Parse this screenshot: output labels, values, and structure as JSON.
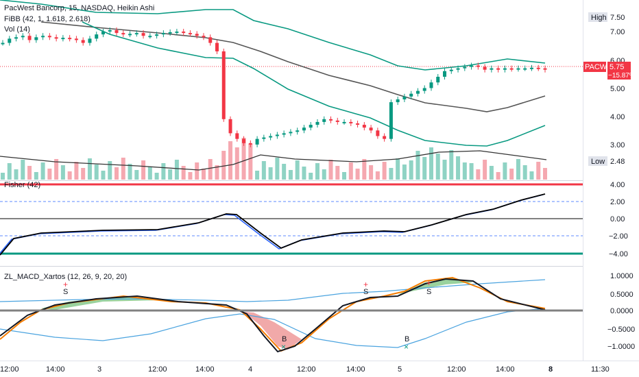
{
  "symbol_title": "PacWest Bancorp, 15, NASDAQ, Heikin Ashi",
  "legend": {
    "fibb": "FiBB (42, 1, 1.618, 2.618)",
    "vol": "Vol (14)",
    "fisher": "Fisher (42)",
    "macd": "ZL_MACD_Xartos (12, 26, 9, 20, 20)"
  },
  "price_pane": {
    "y_ticks": [
      "7.50",
      "7.00",
      "6.00",
      "5.00",
      "4.00",
      "3.00"
    ],
    "high_label": "High",
    "high_value": "7.50",
    "low_label": "Low",
    "low_value": "2.48",
    "ticker": "PACW",
    "last_price": "5.75",
    "change_pct": "−15.87%"
  },
  "fisher_pane": {
    "y_ticks": [
      "4.00",
      "2.00",
      "0.00",
      "−2.00",
      "−4.00"
    ]
  },
  "macd_pane": {
    "y_ticks": [
      "1.0000",
      "0.5000",
      "0.0000",
      "−0.5000",
      "−1.0000"
    ],
    "markers": [
      "S",
      "S",
      "S",
      "B",
      "B"
    ]
  },
  "x_axis": [
    "12:00",
    "14:00",
    "3",
    "12:00",
    "14:00",
    "4",
    "12:00",
    "14:00",
    "5",
    "12:00",
    "14:00",
    "8",
    "11:30"
  ],
  "colors": {
    "up": "#089981",
    "down": "#f23645",
    "bb": "#089981",
    "bb_mid": "#555555",
    "fisher_line": "#000000",
    "fisher_signal": "#2962ff",
    "macd_line": "#131722",
    "macd_signal": "#f57c00",
    "macd_slow": "#4aa3df",
    "fill_green": "#81c784",
    "fill_red": "#ef9a9a"
  }
}
